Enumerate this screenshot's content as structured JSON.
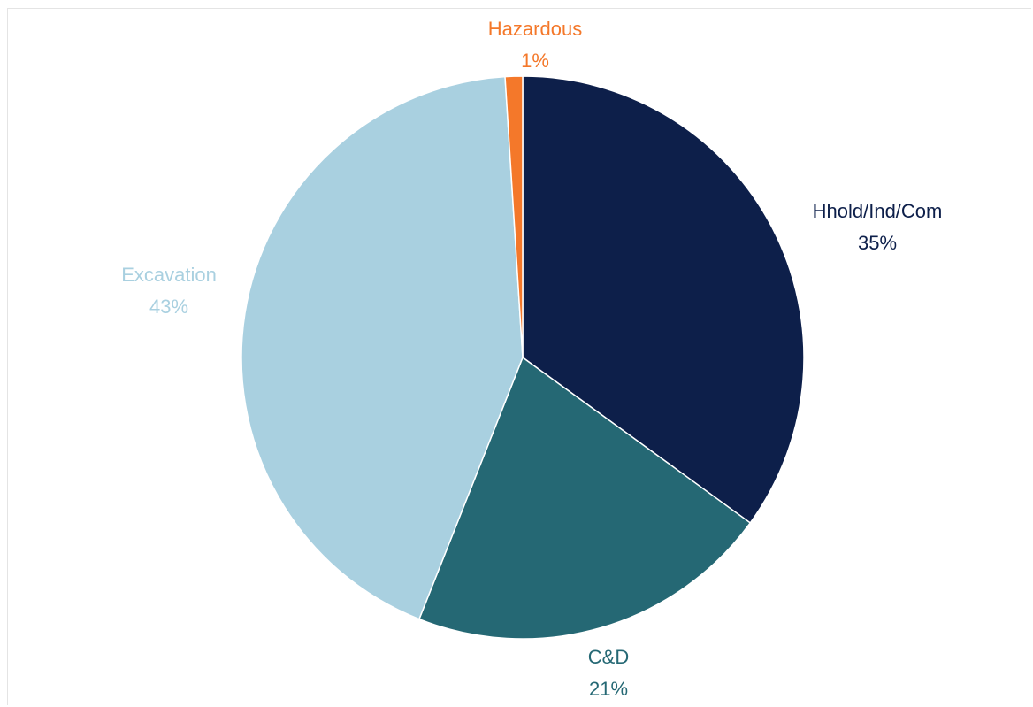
{
  "chart_data": {
    "type": "pie",
    "start_angle_deg": 0,
    "direction": "clockwise",
    "slices": [
      {
        "label": "Hhold/Ind/Com",
        "value": 35,
        "value_label": "35%",
        "color": "#0d1f4a",
        "label_color": "#0d1f4a"
      },
      {
        "label": "C&D",
        "value": 21,
        "value_label": "21%",
        "color": "#256874",
        "label_color": "#256874"
      },
      {
        "label": "Excavation",
        "value": 43,
        "value_label": "43%",
        "color": "#a9d0e0",
        "label_color": "#a9d0e0"
      },
      {
        "label": "Hazardous",
        "value": 1,
        "value_label": "1%",
        "color": "#f4782a",
        "label_color": "#f4782a"
      }
    ]
  }
}
